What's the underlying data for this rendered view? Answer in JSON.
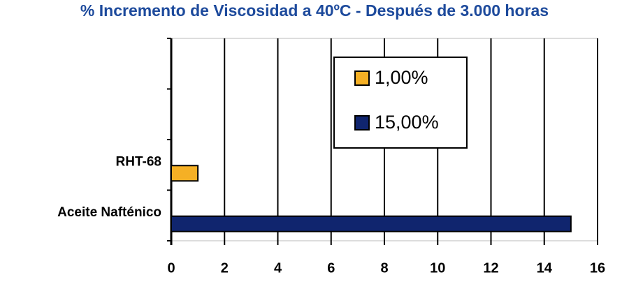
{
  "chart_data": {
    "type": "hbar",
    "title": "% Incremento de Viscosidad a 40ºC - Después de 3.000 horas",
    "categories": [
      null,
      null,
      "RHT-68",
      "Aceite Nafténico"
    ],
    "series": [
      {
        "name": "1,00%",
        "color": "#f5b025",
        "values": [
          null,
          null,
          1,
          null
        ]
      },
      {
        "name": "15,00%",
        "color": "#10256e",
        "values": [
          null,
          null,
          null,
          15
        ]
      }
    ],
    "xlim": [
      0,
      16
    ],
    "xticks": [
      0,
      2,
      4,
      6,
      8,
      10,
      12,
      14,
      16
    ],
    "grid": true,
    "legend": "upper-right"
  }
}
